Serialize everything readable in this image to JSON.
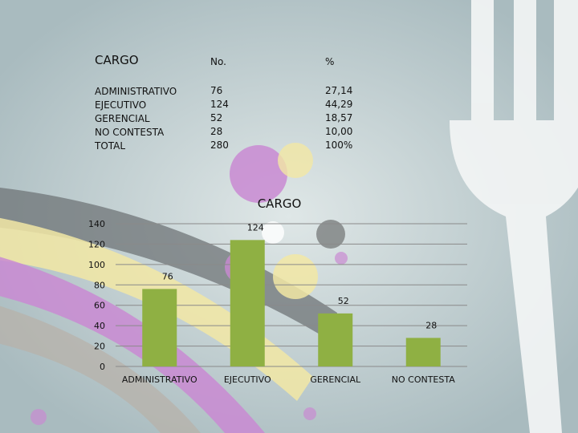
{
  "table": {
    "headers": [
      "CARGO",
      "No.",
      "%"
    ],
    "rows": [
      [
        "ADMINISTRATIVO",
        "76",
        "27,14"
      ],
      [
        "EJECUTIVO",
        "124",
        "44,29"
      ],
      [
        "GERENCIAL",
        "52",
        "18,57"
      ],
      [
        "NO CONTESTA",
        "28",
        "10,00"
      ],
      [
        "TOTAL",
        "280",
        "100%"
      ]
    ]
  },
  "chart_data": {
    "type": "bar",
    "title": "CARGO",
    "categories": [
      "ADMINISTRATIVO",
      "EJECUTIVO",
      "GERENCIAL",
      "NO CONTESTA"
    ],
    "values": [
      76,
      124,
      52,
      28
    ],
    "data_labels": [
      "76",
      "124",
      "52",
      "28"
    ],
    "yticks": [
      "0",
      "20",
      "40",
      "60",
      "80",
      "100",
      "120",
      "140"
    ],
    "ylim": [
      0,
      140
    ],
    "grid": true,
    "legend": "none",
    "bar_color": "#8fb043",
    "grid_color": "#8a8a8a"
  }
}
